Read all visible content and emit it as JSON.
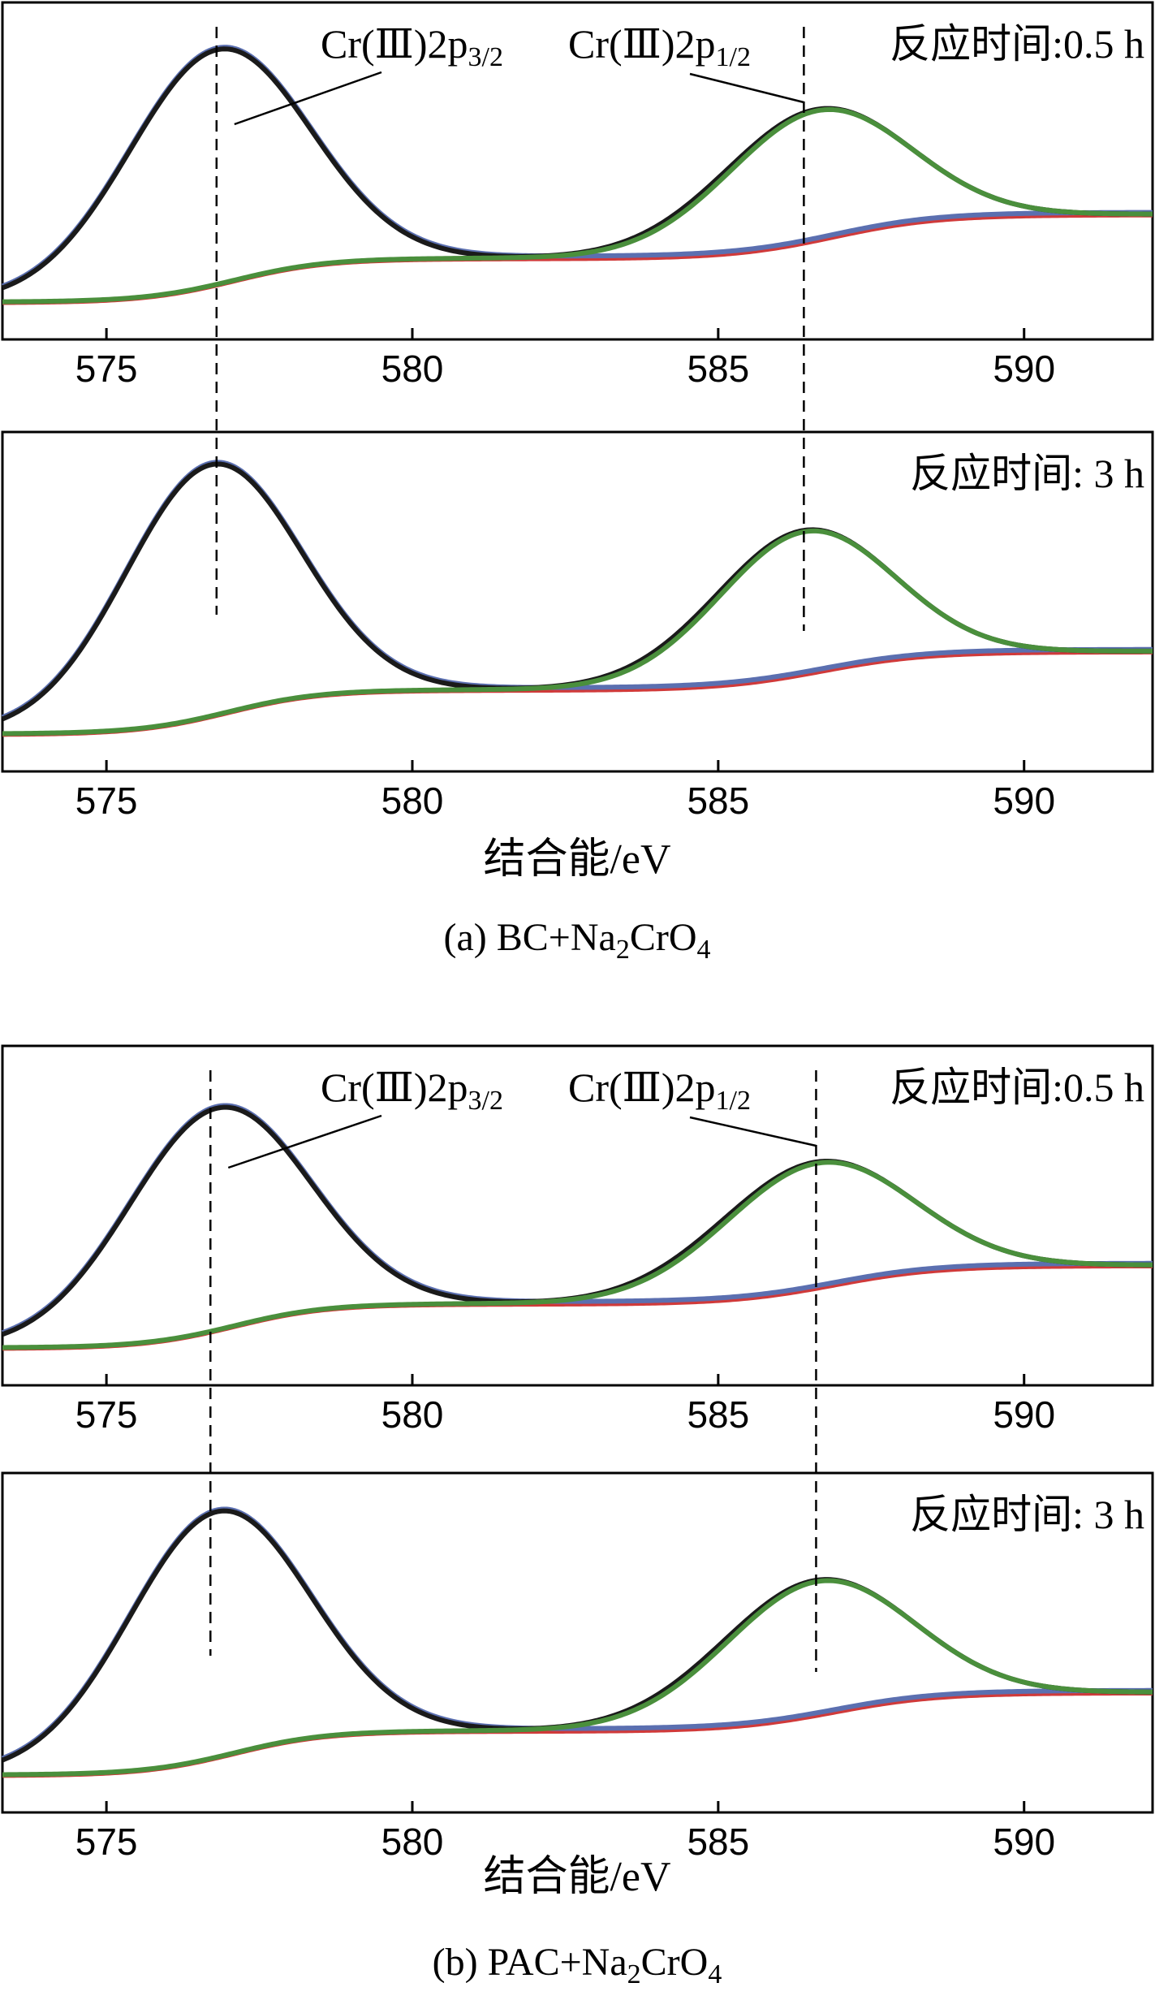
{
  "figure": {
    "captions": [
      {
        "prefix": "(a) BC+Na",
        "sub1": "2",
        "mid": "CrO",
        "sub2": "4"
      },
      {
        "prefix": "(b) PAC+Na",
        "sub1": "2",
        "mid": "CrO",
        "sub2": "4"
      }
    ],
    "xlabel": "结合能/eV",
    "peak_labels": {
      "p32_prefix": "Cr(Ⅲ)2p",
      "p32_sub": "3/2",
      "p12_prefix": "Cr(Ⅲ)2p",
      "p12_sub": "1/2"
    }
  },
  "chart_data": [
    {
      "type": "line",
      "group": "a",
      "annotation": "反应时间:0.5 h",
      "xlabel": "",
      "xlim": [
        573.3,
        592.1
      ],
      "xticks": [
        575,
        580,
        585,
        590
      ],
      "ylim": [
        0,
        1.0
      ],
      "grid": false,
      "legend": "none",
      "vlines": [
        576.8,
        586.4
      ],
      "peak_labels_shown": true,
      "peaks": [
        {
          "center": 576.8,
          "height": 0.8,
          "width": 1.55
        },
        {
          "center": 586.6,
          "height": 0.44,
          "width": 1.55
        }
      ],
      "background": {
        "start": 0.05,
        "step1": 0.2,
        "end": 0.35
      },
      "series": [
        {
          "color": "#1a1a1a",
          "x": [
            573.3,
            574,
            575,
            576,
            576.8,
            577.5,
            578,
            579,
            580,
            581,
            582,
            583,
            584,
            585,
            586,
            586.6,
            587,
            588,
            589,
            590,
            591,
            592.1
          ],
          "y": [
            0.2,
            0.25,
            0.42,
            0.72,
            0.99,
            0.88,
            0.7,
            0.42,
            0.3,
            0.27,
            0.28,
            0.32,
            0.44,
            0.62,
            0.75,
            0.79,
            0.77,
            0.62,
            0.46,
            0.38,
            0.36,
            0.35
          ]
        },
        {
          "color": "#5b6fb0",
          "x": [
            573.3,
            574,
            575,
            576,
            576.8,
            577.5,
            578,
            579,
            580,
            581,
            582,
            583,
            584,
            585,
            586,
            587,
            588,
            589,
            590,
            591,
            592.1
          ],
          "y": [
            0.2,
            0.25,
            0.42,
            0.72,
            0.99,
            0.88,
            0.7,
            0.42,
            0.3,
            0.27,
            0.26,
            0.26,
            0.27,
            0.29,
            0.31,
            0.33,
            0.34,
            0.35,
            0.35,
            0.35,
            0.35
          ]
        },
        {
          "color": "#d03a3a",
          "x": [
            573.3,
            574,
            575,
            576,
            577,
            578,
            579,
            580,
            581,
            582,
            583,
            584,
            585,
            586,
            587,
            588,
            589,
            590,
            591,
            592.1
          ],
          "y": [
            0.05,
            0.05,
            0.06,
            0.08,
            0.12,
            0.16,
            0.19,
            0.2,
            0.21,
            0.21,
            0.22,
            0.23,
            0.25,
            0.28,
            0.31,
            0.33,
            0.34,
            0.35,
            0.35,
            0.35
          ]
        },
        {
          "color": "#4a8f3c",
          "x": [
            573.3,
            574,
            575,
            576,
            577,
            578,
            579,
            580,
            581,
            582,
            583,
            584,
            585,
            586,
            586.6,
            587,
            588,
            589,
            590,
            591,
            592.1
          ],
          "y": [
            0.05,
            0.05,
            0.06,
            0.08,
            0.12,
            0.16,
            0.19,
            0.2,
            0.21,
            0.22,
            0.25,
            0.36,
            0.58,
            0.74,
            0.78,
            0.76,
            0.61,
            0.45,
            0.38,
            0.36,
            0.35
          ]
        }
      ]
    },
    {
      "type": "line",
      "group": "a",
      "annotation": "反应时间: 3 h",
      "xlabel": "结合能/eV",
      "xlim": [
        573.3,
        592.1
      ],
      "xticks": [
        575,
        580,
        585,
        590
      ],
      "ylim": [
        0,
        1.0
      ],
      "grid": false,
      "legend": "none",
      "vlines": [
        576.8,
        586.4
      ],
      "peak_labels_shown": false,
      "peaks": [
        {
          "center": 576.7,
          "height": 0.85,
          "width": 1.5
        },
        {
          "center": 586.4,
          "height": 0.48,
          "width": 1.5
        }
      ],
      "background": {
        "start": 0.05,
        "step1": 0.2,
        "end": 0.33
      },
      "series": [
        {
          "color": "#1a1a1a",
          "x": [
            573.3,
            574,
            575,
            576,
            576.7,
            577.5,
            578,
            579,
            580,
            581,
            582,
            583,
            584,
            585,
            586,
            586.4,
            587,
            588,
            589,
            590,
            591,
            592.1
          ],
          "y": [
            0.08,
            0.14,
            0.36,
            0.74,
            0.99,
            0.85,
            0.65,
            0.37,
            0.25,
            0.23,
            0.23,
            0.25,
            0.35,
            0.54,
            0.68,
            0.7,
            0.67,
            0.52,
            0.4,
            0.35,
            0.33,
            0.33
          ]
        },
        {
          "color": "#5b6fb0",
          "x": [
            573.3,
            574,
            575,
            576,
            576.7,
            577.5,
            578,
            579,
            580,
            581,
            582,
            583,
            584,
            585,
            586,
            587,
            588,
            589,
            590,
            591,
            592.1
          ],
          "y": [
            0.08,
            0.14,
            0.36,
            0.74,
            0.99,
            0.85,
            0.65,
            0.37,
            0.25,
            0.23,
            0.22,
            0.22,
            0.23,
            0.25,
            0.27,
            0.29,
            0.31,
            0.32,
            0.33,
            0.33,
            0.33
          ]
        },
        {
          "color": "#d03a3a",
          "x": [
            573.3,
            574,
            575,
            576,
            577,
            578,
            579,
            580,
            581,
            582,
            583,
            584,
            585,
            586,
            587,
            588,
            589,
            590,
            591,
            592.1
          ],
          "y": [
            0.05,
            0.05,
            0.06,
            0.09,
            0.14,
            0.18,
            0.2,
            0.21,
            0.21,
            0.21,
            0.22,
            0.23,
            0.24,
            0.26,
            0.28,
            0.3,
            0.32,
            0.33,
            0.33,
            0.33
          ]
        },
        {
          "color": "#4a8f3c",
          "x": [
            573.3,
            574,
            575,
            576,
            577,
            578,
            579,
            580,
            581,
            582,
            583,
            584,
            585,
            586,
            586.4,
            587,
            588,
            589,
            590,
            591,
            592.1
          ],
          "y": [
            0.05,
            0.05,
            0.06,
            0.09,
            0.14,
            0.18,
            0.2,
            0.21,
            0.21,
            0.22,
            0.24,
            0.33,
            0.52,
            0.67,
            0.69,
            0.66,
            0.51,
            0.39,
            0.34,
            0.33,
            0.33
          ]
        }
      ]
    },
    {
      "type": "line",
      "group": "b",
      "annotation": "反应时间:0.5 h",
      "xlabel": "",
      "xlim": [
        573.3,
        592.1
      ],
      "xticks": [
        575,
        580,
        585,
        590
      ],
      "ylim": [
        0,
        1.0
      ],
      "grid": false,
      "legend": "none",
      "vlines": [
        576.7,
        586.6
      ],
      "peak_labels_shown": true,
      "peaks": [
        {
          "center": 576.8,
          "height": 0.75,
          "width": 1.55
        },
        {
          "center": 586.6,
          "height": 0.42,
          "width": 1.6
        }
      ],
      "background": {
        "start": 0.05,
        "step1": 0.2,
        "end": 0.33
      },
      "series": [
        {
          "color": "#1a1a1a",
          "x": [
            573.3,
            574,
            575,
            576,
            576.8,
            577.5,
            578,
            579,
            580,
            581,
            582,
            583,
            584,
            585,
            586,
            586.6,
            587,
            588,
            589,
            590,
            591,
            592.1
          ],
          "y": [
            0.18,
            0.23,
            0.4,
            0.7,
            0.95,
            0.84,
            0.66,
            0.4,
            0.28,
            0.26,
            0.26,
            0.3,
            0.4,
            0.56,
            0.7,
            0.74,
            0.72,
            0.58,
            0.43,
            0.36,
            0.34,
            0.33
          ]
        },
        {
          "color": "#5b6fb0",
          "x": [
            573.3,
            574,
            575,
            576,
            576.8,
            577.5,
            578,
            579,
            580,
            581,
            582,
            583,
            584,
            585,
            586,
            587,
            588,
            589,
            590,
            591,
            592.1
          ],
          "y": [
            0.18,
            0.23,
            0.4,
            0.7,
            0.95,
            0.84,
            0.66,
            0.4,
            0.28,
            0.26,
            0.25,
            0.25,
            0.26,
            0.27,
            0.29,
            0.31,
            0.32,
            0.33,
            0.33,
            0.33,
            0.33
          ]
        },
        {
          "color": "#d03a3a",
          "x": [
            573.3,
            574,
            575,
            576,
            577,
            578,
            579,
            580,
            581,
            582,
            583,
            584,
            585,
            586,
            587,
            588,
            589,
            590,
            591,
            592.1
          ],
          "y": [
            0.05,
            0.05,
            0.06,
            0.08,
            0.12,
            0.16,
            0.18,
            0.19,
            0.2,
            0.2,
            0.21,
            0.22,
            0.24,
            0.26,
            0.29,
            0.31,
            0.32,
            0.33,
            0.33,
            0.33
          ]
        },
        {
          "color": "#4a8f3c",
          "x": [
            573.3,
            574,
            575,
            576,
            577,
            578,
            579,
            580,
            581,
            582,
            583,
            584,
            585,
            586,
            586.6,
            587,
            588,
            589,
            590,
            591,
            592.1
          ],
          "y": [
            0.05,
            0.05,
            0.06,
            0.08,
            0.12,
            0.16,
            0.18,
            0.19,
            0.2,
            0.21,
            0.23,
            0.33,
            0.53,
            0.69,
            0.73,
            0.71,
            0.57,
            0.42,
            0.35,
            0.34,
            0.33
          ]
        }
      ]
    },
    {
      "type": "line",
      "group": "b",
      "annotation": "反应时间: 3 h",
      "xlabel": "结合能/eV",
      "xlim": [
        573.3,
        592.1
      ],
      "xticks": [
        575,
        580,
        585,
        590
      ],
      "ylim": [
        0,
        1.0
      ],
      "grid": false,
      "legend": "none",
      "vlines": [
        576.7,
        586.5
      ],
      "peak_labels_shown": false,
      "peaks": [
        {
          "center": 576.8,
          "height": 0.83,
          "width": 1.55
        },
        {
          "center": 586.6,
          "height": 0.45,
          "width": 1.6
        }
      ],
      "background": {
        "start": 0.05,
        "step1": 0.2,
        "end": 0.33
      },
      "series": [
        {
          "color": "#1a1a1a",
          "x": [
            573.3,
            574,
            575,
            576,
            576.8,
            577.5,
            578,
            579,
            580,
            581,
            582,
            583,
            584,
            585,
            586,
            586.6,
            587,
            588,
            589,
            590,
            591,
            592.1
          ],
          "y": [
            0.1,
            0.16,
            0.37,
            0.74,
            0.99,
            0.86,
            0.66,
            0.38,
            0.26,
            0.23,
            0.23,
            0.25,
            0.35,
            0.53,
            0.68,
            0.72,
            0.7,
            0.55,
            0.41,
            0.35,
            0.33,
            0.33
          ]
        },
        {
          "color": "#5b6fb0",
          "x": [
            573.3,
            574,
            575,
            576,
            576.8,
            577.5,
            578,
            579,
            580,
            581,
            582,
            583,
            584,
            585,
            586,
            587,
            588,
            589,
            590,
            591,
            592.1
          ],
          "y": [
            0.1,
            0.16,
            0.37,
            0.74,
            0.99,
            0.86,
            0.66,
            0.38,
            0.26,
            0.23,
            0.22,
            0.22,
            0.23,
            0.25,
            0.27,
            0.29,
            0.31,
            0.32,
            0.33,
            0.33,
            0.33
          ]
        },
        {
          "color": "#d03a3a",
          "x": [
            573.3,
            574,
            575,
            576,
            577,
            578,
            579,
            580,
            581,
            582,
            583,
            584,
            585,
            586,
            587,
            588,
            589,
            590,
            591,
            592.1
          ],
          "y": [
            0.05,
            0.05,
            0.06,
            0.09,
            0.13,
            0.17,
            0.19,
            0.2,
            0.21,
            0.21,
            0.22,
            0.22,
            0.24,
            0.26,
            0.28,
            0.3,
            0.32,
            0.33,
            0.33,
            0.33
          ]
        },
        {
          "color": "#4a8f3c",
          "x": [
            573.3,
            574,
            575,
            576,
            577,
            578,
            579,
            580,
            581,
            582,
            583,
            584,
            585,
            586,
            586.6,
            587,
            588,
            589,
            590,
            591,
            592.1
          ],
          "y": [
            0.05,
            0.05,
            0.06,
            0.09,
            0.13,
            0.17,
            0.19,
            0.2,
            0.21,
            0.22,
            0.24,
            0.33,
            0.51,
            0.67,
            0.71,
            0.69,
            0.54,
            0.4,
            0.34,
            0.33,
            0.33
          ]
        }
      ]
    }
  ]
}
